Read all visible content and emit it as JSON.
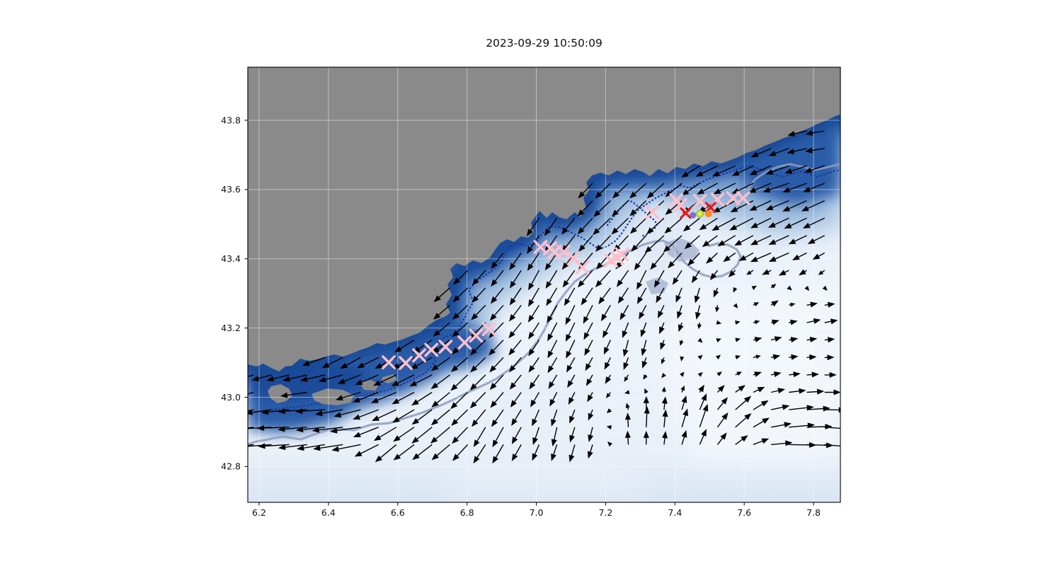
{
  "title": "2023-09-29 10:50:09",
  "axes": {
    "xtick_labels": [
      "6.2",
      "6.4",
      "6.6",
      "6.8",
      "7.0",
      "7.2",
      "7.4",
      "7.6",
      "7.8"
    ],
    "ytick_labels": [
      "43.8",
      "43.6",
      "43.4",
      "43.2",
      "43.0",
      "42.8"
    ],
    "xtick_values": [
      6.2,
      6.4,
      6.6,
      6.8,
      7.0,
      7.2,
      7.4,
      7.6,
      7.8
    ],
    "ytick_values": [
      43.8,
      43.6,
      43.4,
      43.2,
      43.0,
      42.8
    ],
    "xlim": [
      6.167,
      7.878
    ],
    "ylim": [
      42.697,
      43.953
    ],
    "grid": true
  },
  "chart_data": {
    "type": "map_quiver",
    "title": "2023-09-29 10:50:09",
    "description": "Coastal map with grey land (upper left), blue field strongest along the coast fading offshore, dark dotted and slate contour lines, black current-vector arrows, pink/red cross markers and three coloured dot markers near 7.45E 43.53N",
    "xlim": [
      6.167,
      7.878
    ],
    "ylim": [
      42.697,
      43.953
    ],
    "xticks": [
      6.2,
      6.4,
      6.6,
      6.8,
      7.0,
      7.2,
      7.4,
      7.6,
      7.8
    ],
    "yticks": [
      43.8,
      43.6,
      43.4,
      43.2,
      43.0,
      42.8
    ],
    "grid": true,
    "colors": {
      "land": "#8a8a8a",
      "field_deep": "#1b4896",
      "field_mid": "#2a5ca8",
      "field_halo": "#7aa3d2",
      "field_pale": "#f3f7fc",
      "dotted_contour": "#17359f",
      "slate_contour": "#8e9cc2",
      "arrow": "#000000",
      "pink_cross": "#ffc0cb",
      "red_cross": "#e51a1a",
      "purple_dot": "#7a6fce",
      "yellow_green_dot": "#eff13e",
      "orange_dot": "#ff8b1c"
    },
    "markers": {
      "pink_crosses": [
        [
          6.574,
          43.101
        ],
        [
          6.623,
          43.099
        ],
        [
          6.662,
          43.121
        ],
        [
          6.697,
          43.137
        ],
        [
          6.738,
          43.146
        ],
        [
          6.793,
          43.158
        ],
        [
          6.826,
          43.178
        ],
        [
          6.863,
          43.197
        ],
        [
          7.012,
          43.434
        ],
        [
          7.04,
          43.43
        ],
        [
          7.053,
          43.42
        ],
        [
          7.079,
          43.42
        ],
        [
          7.108,
          43.401
        ],
        [
          7.133,
          43.375
        ],
        [
          7.216,
          43.395
        ],
        [
          7.233,
          43.403
        ],
        [
          7.247,
          43.413
        ],
        [
          7.335,
          43.534
        ],
        [
          7.404,
          43.569
        ],
        [
          7.415,
          43.555
        ],
        [
          7.472,
          43.567
        ],
        [
          7.523,
          43.571
        ],
        [
          7.568,
          43.575
        ],
        [
          7.597,
          43.575
        ]
      ],
      "red_crosses": [
        [
          7.431,
          43.532
        ],
        [
          7.503,
          43.548
        ]
      ],
      "dots": [
        {
          "name": "purple-dot",
          "color": "#7a6fce",
          "lon": 7.452,
          "lat": 43.526,
          "r": 4.5
        },
        {
          "name": "yellow-green-dot",
          "color": "#eff13e",
          "lon": 7.472,
          "lat": 43.53,
          "r": 5.5
        },
        {
          "name": "orange-dot",
          "color": "#ff8b1c",
          "lon": 7.497,
          "lat": 43.53,
          "r": 5.0
        }
      ]
    },
    "quiver": {
      "color": "#000000",
      "grid_step_deg": 0.0515,
      "lon_start": 6.184,
      "lat_start": 43.92,
      "cols": 34,
      "rows": 22,
      "controls": [
        [
          6.27,
          42.9,
          -1.0,
          0.0
        ],
        [
          6.47,
          42.9,
          -1.0,
          -0.05
        ],
        [
          6.37,
          42.96,
          -0.9,
          0.0
        ],
        [
          6.6,
          42.86,
          -0.6,
          -0.55
        ],
        [
          6.72,
          42.92,
          -0.6,
          -0.5
        ],
        [
          6.88,
          42.9,
          -0.3,
          -0.65
        ],
        [
          7.05,
          42.92,
          -0.1,
          -0.6
        ],
        [
          7.17,
          42.91,
          -0.1,
          -0.5
        ],
        [
          7.13,
          42.85,
          -0.15,
          -0.6
        ],
        [
          7.25,
          42.89,
          0.0,
          0.65
        ],
        [
          7.33,
          42.92,
          0.05,
          0.75
        ],
        [
          7.46,
          42.92,
          0.25,
          0.8
        ],
        [
          7.58,
          42.94,
          0.55,
          0.5
        ],
        [
          7.74,
          42.94,
          0.85,
          0.1
        ],
        [
          7.84,
          42.88,
          0.9,
          -0.1
        ],
        [
          7.74,
          42.84,
          0.9,
          -0.05
        ],
        [
          7.5,
          43.13,
          0.06,
          0.1
        ],
        [
          7.55,
          43.2,
          0.15,
          0.08
        ],
        [
          7.66,
          43.17,
          0.35,
          0.1
        ],
        [
          7.8,
          43.23,
          0.5,
          0.12
        ],
        [
          7.29,
          43.17,
          -0.1,
          -0.55
        ],
        [
          7.09,
          43.19,
          -0.25,
          -0.6
        ],
        [
          6.88,
          43.19,
          -0.45,
          -0.45
        ],
        [
          6.68,
          43.08,
          -0.7,
          -0.3
        ],
        [
          6.43,
          43.03,
          -0.75,
          -0.1
        ],
        [
          6.8,
          43.03,
          -0.5,
          -0.5
        ],
        [
          6.47,
          43.12,
          -0.55,
          -0.35
        ],
        [
          6.21,
          43.04,
          -0.5,
          -0.15
        ],
        [
          6.57,
          43.0,
          -0.8,
          -0.3
        ],
        [
          6.68,
          43.27,
          -0.5,
          -0.45
        ],
        [
          7.01,
          43.35,
          -0.3,
          -0.6
        ],
        [
          7.19,
          43.37,
          -0.5,
          -0.5
        ],
        [
          7.33,
          43.37,
          -0.25,
          -0.6
        ],
        [
          7.13,
          43.27,
          -0.25,
          -0.6
        ],
        [
          7.46,
          43.29,
          -0.1,
          -0.55
        ],
        [
          7.66,
          43.29,
          0.3,
          0.25
        ],
        [
          7.39,
          43.47,
          -0.65,
          -0.55
        ],
        [
          7.6,
          43.53,
          -0.8,
          -0.4
        ],
        [
          7.74,
          43.62,
          -0.8,
          -0.25
        ],
        [
          7.82,
          43.74,
          -0.55,
          -0.05
        ],
        [
          7.7,
          43.43,
          -0.75,
          -0.3
        ],
        [
          7.23,
          43.53,
          -0.55,
          -0.5
        ],
        [
          7.03,
          43.49,
          -0.35,
          -0.55
        ],
        [
          7.35,
          43.6,
          -0.5,
          -0.45
        ],
        [
          7.56,
          43.66,
          -0.7,
          -0.3
        ],
        [
          7.8,
          43.55,
          -0.75,
          -0.35
        ]
      ]
    }
  }
}
